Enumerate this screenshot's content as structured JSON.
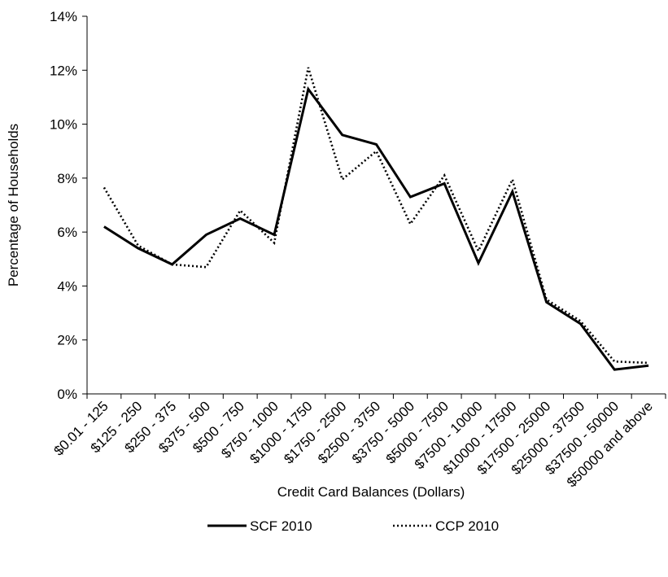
{
  "chart_data": {
    "type": "line",
    "x_label": "Credit Card Balances (Dollars)",
    "y_label": "Percentage of Households",
    "categories": [
      "$0.01 - 125",
      "$125 - 250",
      "$250 - 375",
      "$375 - 500",
      "$500 - 750",
      "$750 - 1000",
      "$1000 - 1750",
      "$1750 - 2500",
      "$2500 - 3750",
      "$3750 - 5000",
      "$5000 - 7500",
      "$7500 - 10000",
      "$10000 - 17500",
      "$17500 - 25000",
      "$25000 - 37500",
      "$37500 - 50000",
      "$50000 and above"
    ],
    "series": [
      {
        "name": "SCF 2010",
        "color": "#000000",
        "style": "solid",
        "values": [
          6.2,
          5.4,
          4.8,
          5.9,
          6.5,
          5.9,
          11.3,
          9.6,
          9.25,
          7.3,
          7.8,
          4.85,
          7.5,
          3.4,
          2.6,
          0.9,
          1.05
        ]
      },
      {
        "name": "CCP 2010",
        "color": "#000000",
        "style": "dotted",
        "values": [
          7.65,
          5.5,
          4.8,
          4.7,
          6.8,
          5.6,
          12.1,
          7.95,
          9.0,
          6.3,
          8.1,
          5.3,
          7.95,
          3.5,
          2.7,
          1.2,
          1.15
        ]
      }
    ],
    "ylim": [
      0,
      14
    ],
    "yticks": [
      {
        "value": 0,
        "label": "0%"
      },
      {
        "value": 2,
        "label": "2%"
      },
      {
        "value": 4,
        "label": "4%"
      },
      {
        "value": 6,
        "label": "6%"
      },
      {
        "value": 8,
        "label": "8%"
      },
      {
        "value": 10,
        "label": "10%"
      },
      {
        "value": 12,
        "label": "12%"
      },
      {
        "value": 14,
        "label": "14%"
      }
    ],
    "grid": false,
    "legend": "bottom"
  }
}
